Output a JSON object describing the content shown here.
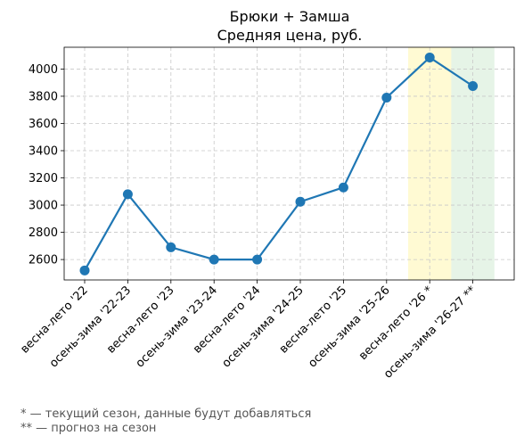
{
  "chart_data": {
    "type": "line",
    "title": "Брюки + Замша",
    "subtitle": "Средняя цена, руб.",
    "xlabel": "",
    "ylabel": "",
    "categories": [
      "весна-лето '22",
      "осень-зима '22-23",
      "весна-лето '23",
      "осень-зима '23-24",
      "весна-лето '24",
      "осень-зима '24-25",
      "весна-лето '25",
      "осень-зима '25-26",
      "весна-лето '26 *",
      "осень-зима '26-27 **"
    ],
    "series": [
      {
        "values": [
          2520,
          3080,
          2690,
          2600,
          2600,
          3025,
          3130,
          3790,
          4085,
          3875
        ],
        "color": "#1f77b4"
      }
    ],
    "ylim": [
      2450,
      4160
    ],
    "yticks": [
      2600,
      2800,
      3000,
      3200,
      3400,
      3600,
      3800,
      4000
    ],
    "grid": true,
    "highlights": [
      {
        "category_index": 8,
        "color": "#fff59d",
        "note": "current season"
      },
      {
        "category_index": 9,
        "color": "#c8e6c9",
        "note": "forecast"
      }
    ]
  },
  "footnotes": {
    "current": "* — текущий сезон, данные будут добавляться",
    "forecast": "** — прогноз на сезон"
  }
}
